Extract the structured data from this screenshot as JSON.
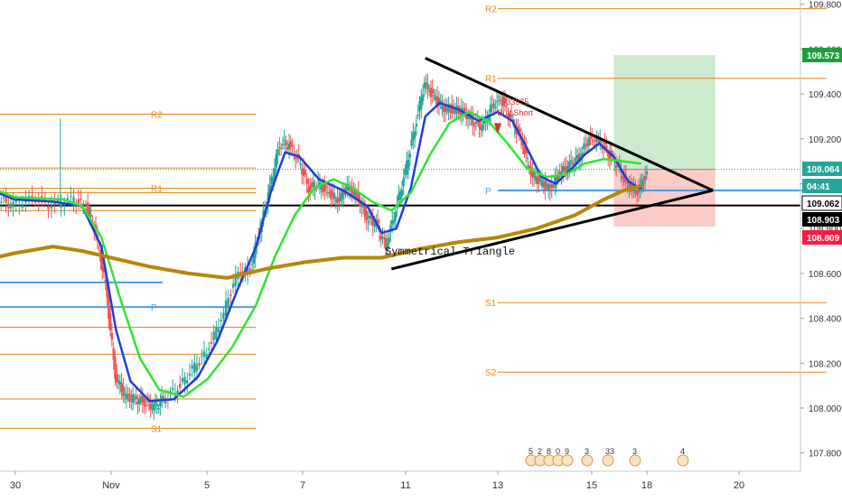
{
  "chart_data": {
    "type": "candlestick",
    "title": "",
    "price_axis": {
      "range": [
        107.7,
        109.86
      ],
      "tick_labels": [
        "109.800",
        "109.600",
        "109.400",
        "109.200",
        "109.000",
        "108.800",
        "108.600",
        "108.400",
        "108.200",
        "108.000",
        "107.800"
      ],
      "tick_values": [
        109.8,
        109.6,
        109.4,
        109.2,
        109.0,
        108.8,
        108.6,
        108.4,
        108.2,
        108.0,
        107.8
      ]
    },
    "time_axis": {
      "tick_labels": [
        "30",
        "Nov",
        "5",
        "7",
        "11",
        "13",
        "15",
        "18",
        "20"
      ],
      "tick_days": [
        -2,
        0,
        4,
        6,
        8,
        10,
        12,
        14,
        18
      ]
    },
    "price_tags": [
      {
        "label": "109.573",
        "value": 109.573,
        "color": "#1e9e3c"
      },
      {
        "label": "109.064",
        "value": 109.064,
        "color": "#26a69a"
      },
      {
        "label": "04:41",
        "value": 109.01,
        "color": "#26a69a"
      },
      {
        "label": "109.062",
        "value": 109.062,
        "color": "#ffffff"
      },
      {
        "label": "108.903",
        "value": 108.903,
        "color": "#000000"
      },
      {
        "label": "108.809",
        "value": 108.809,
        "color": "#ff1744"
      }
    ],
    "pivot_sets": [
      {
        "from_day": -2.6,
        "to_day": 3.0,
        "levels": [
          {
            "name": "R2",
            "value": 109.31
          },
          {
            "name": "R1",
            "value": 108.98
          },
          {
            "name": "P",
            "value": 108.45
          },
          {
            "name": "S1",
            "value": 107.91
          }
        ],
        "extra_lines": [
          109.07,
          108.96,
          108.88,
          108.36,
          108.24,
          108.04
        ]
      },
      {
        "from_day": 8.0,
        "to_day": 14.8,
        "levels": [
          {
            "name": "R2",
            "value": 109.78
          },
          {
            "name": "R1",
            "value": 109.47
          },
          {
            "name": "P",
            "value": 108.97
          },
          {
            "name": "S1",
            "value": 108.47
          },
          {
            "name": "S2",
            "value": 108.16
          }
        ]
      }
    ],
    "older_pivot": {
      "name": "P",
      "value": 108.56
    },
    "horizontal_line": 108.903,
    "triangle_label": "Symmetrical Triangle",
    "triangle": {
      "upper": [
        [
          6.5,
          109.56
        ],
        [
          12.45,
          108.97
        ]
      ],
      "lower": [
        [
          5.8,
          108.62
        ],
        [
          12.45,
          108.97
        ]
      ]
    },
    "position": {
      "from_day": 10.4,
      "to_day": 12.5,
      "entry": 109.064,
      "target": 109.573,
      "stop": 108.809
    },
    "trade_annotation": {
      "text_1": "-33975",
      "text_2": "Buy Short",
      "day": 8.1,
      "value": 109.32
    },
    "close_series": [
      [
        -2.6,
        108.97
      ],
      [
        -2.3,
        108.93
      ],
      [
        -2.0,
        108.9
      ],
      [
        -1.6,
        108.94
      ],
      [
        -1.2,
        108.9
      ],
      [
        -0.8,
        108.93
      ],
      [
        -0.5,
        108.9
      ],
      [
        -0.3,
        108.78
      ],
      [
        -0.1,
        108.55
      ],
      [
        0.1,
        108.15
      ],
      [
        0.3,
        108.05
      ],
      [
        0.5,
        108.04
      ],
      [
        0.7,
        108.03
      ],
      [
        0.9,
        108.0
      ],
      [
        1.1,
        108.04
      ],
      [
        1.4,
        108.09
      ],
      [
        1.7,
        108.17
      ],
      [
        2.0,
        108.25
      ],
      [
        2.3,
        108.4
      ],
      [
        2.6,
        108.58
      ],
      [
        2.9,
        108.63
      ],
      [
        3.1,
        108.8
      ],
      [
        3.3,
        108.98
      ],
      [
        3.5,
        109.18
      ],
      [
        3.7,
        109.17
      ],
      [
        3.9,
        109.1
      ],
      [
        4.1,
        108.98
      ],
      [
        4.3,
        109.0
      ],
      [
        4.5,
        108.96
      ],
      [
        4.7,
        108.93
      ],
      [
        4.9,
        108.98
      ],
      [
        5.1,
        108.95
      ],
      [
        5.3,
        108.85
      ],
      [
        5.5,
        108.82
      ],
      [
        5.7,
        108.72
      ],
      [
        5.9,
        108.88
      ],
      [
        6.1,
        109.05
      ],
      [
        6.3,
        109.25
      ],
      [
        6.5,
        109.45
      ],
      [
        6.7,
        109.38
      ],
      [
        6.9,
        109.34
      ],
      [
        7.1,
        109.33
      ],
      [
        7.3,
        109.32
      ],
      [
        7.5,
        109.28
      ],
      [
        7.7,
        109.25
      ],
      [
        7.9,
        109.35
      ],
      [
        8.1,
        109.38
      ],
      [
        8.3,
        109.28
      ],
      [
        8.5,
        109.2
      ],
      [
        8.7,
        109.05
      ],
      [
        8.9,
        109.0
      ],
      [
        9.1,
        108.98
      ],
      [
        9.3,
        109.05
      ],
      [
        9.5,
        109.08
      ],
      [
        9.7,
        109.12
      ],
      [
        9.9,
        109.2
      ],
      [
        10.1,
        109.19
      ],
      [
        10.3,
        109.14
      ],
      [
        10.5,
        109.08
      ],
      [
        10.7,
        108.99
      ],
      [
        10.9,
        108.97
      ],
      [
        11.1,
        109.04
      ]
    ],
    "series": [
      {
        "name": "blue-fast-ma",
        "color": "#1f3fdc",
        "values": [
          [
            -2.6,
            108.98
          ],
          [
            -2.0,
            108.93
          ],
          [
            -1.2,
            108.92
          ],
          [
            -0.6,
            108.9
          ],
          [
            -0.2,
            108.72
          ],
          [
            0.1,
            108.35
          ],
          [
            0.4,
            108.12
          ],
          [
            0.8,
            108.03
          ],
          [
            1.3,
            108.04
          ],
          [
            1.8,
            108.14
          ],
          [
            2.2,
            108.3
          ],
          [
            2.6,
            108.52
          ],
          [
            3.0,
            108.72
          ],
          [
            3.3,
            108.96
          ],
          [
            3.6,
            109.14
          ],
          [
            3.9,
            109.12
          ],
          [
            4.3,
            109.02
          ],
          [
            4.8,
            108.97
          ],
          [
            5.3,
            108.9
          ],
          [
            5.6,
            108.78
          ],
          [
            5.9,
            108.8
          ],
          [
            6.2,
            108.98
          ],
          [
            6.5,
            109.3
          ],
          [
            6.8,
            109.36
          ],
          [
            7.2,
            109.33
          ],
          [
            7.6,
            109.28
          ],
          [
            8.0,
            109.32
          ],
          [
            8.3,
            109.28
          ],
          [
            8.6,
            109.16
          ],
          [
            8.9,
            109.03
          ],
          [
            9.2,
            109.0
          ],
          [
            9.5,
            109.06
          ],
          [
            9.8,
            109.13
          ],
          [
            10.1,
            109.18
          ],
          [
            10.4,
            109.12
          ],
          [
            10.7,
            109.01
          ],
          [
            10.95,
            108.98
          ]
        ]
      },
      {
        "name": "green-ma",
        "color": "#2ee62e",
        "values": [
          [
            -2.6,
            108.99
          ],
          [
            -2.0,
            108.94
          ],
          [
            -1.0,
            108.93
          ],
          [
            -0.6,
            108.9
          ],
          [
            -0.2,
            108.76
          ],
          [
            0.2,
            108.48
          ],
          [
            0.6,
            108.22
          ],
          [
            1.0,
            108.08
          ],
          [
            1.5,
            108.05
          ],
          [
            2.0,
            108.13
          ],
          [
            2.5,
            108.27
          ],
          [
            3.0,
            108.46
          ],
          [
            3.4,
            108.68
          ],
          [
            3.8,
            108.86
          ],
          [
            4.2,
            108.98
          ],
          [
            4.6,
            109.02
          ],
          [
            5.0,
            108.98
          ],
          [
            5.4,
            108.92
          ],
          [
            5.8,
            108.88
          ],
          [
            6.2,
            108.96
          ],
          [
            6.6,
            109.13
          ],
          [
            7.0,
            109.27
          ],
          [
            7.4,
            109.32
          ],
          [
            7.8,
            109.28
          ],
          [
            8.2,
            109.18
          ],
          [
            8.6,
            109.07
          ],
          [
            9.0,
            109.03
          ],
          [
            9.4,
            109.04
          ],
          [
            9.8,
            109.09
          ],
          [
            10.2,
            109.11
          ],
          [
            10.6,
            109.1
          ],
          [
            10.95,
            109.09
          ]
        ]
      },
      {
        "name": "gold-slow-ma",
        "color": "#b8860b",
        "values": [
          [
            -2.6,
            108.66
          ],
          [
            -2.0,
            108.69
          ],
          [
            -1.2,
            108.72
          ],
          [
            -0.6,
            108.7
          ],
          [
            0.0,
            108.67
          ],
          [
            0.8,
            108.63
          ],
          [
            1.6,
            108.6
          ],
          [
            2.4,
            108.58
          ],
          [
            3.2,
            108.62
          ],
          [
            4.0,
            108.65
          ],
          [
            4.8,
            108.67
          ],
          [
            5.6,
            108.67
          ],
          [
            6.4,
            108.71
          ],
          [
            7.2,
            108.74
          ],
          [
            8.0,
            108.76
          ],
          [
            8.8,
            108.8
          ],
          [
            9.6,
            108.86
          ],
          [
            10.2,
            108.93
          ],
          [
            10.6,
            108.97
          ],
          [
            10.95,
            108.99
          ]
        ]
      }
    ],
    "event_markers": {
      "labels": [
        "5",
        "2",
        "8",
        "0",
        "9",
        "3",
        "33",
        "3",
        "4"
      ]
    }
  }
}
